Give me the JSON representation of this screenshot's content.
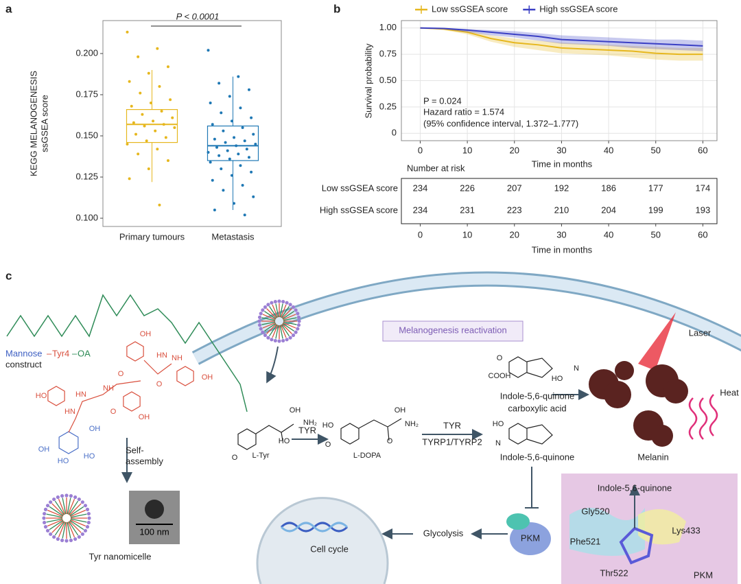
{
  "chart_data": [
    {
      "type": "box",
      "panel": "a",
      "y_label": [
        "KEGG MELANOGENESIS",
        "ssGSEA score"
      ],
      "annotation": "P < 0.0001",
      "categories": [
        "Primary tumours",
        "Metastasis"
      ],
      "colors": [
        "#e6b71e",
        "#1f78b4"
      ],
      "ylim": [
        0.095,
        0.22
      ],
      "yticks": [
        {
          "value": 0.1,
          "label": "0.100"
        },
        0.125,
        {
          "value": 0.15,
          "label": "0.150"
        },
        0.175,
        {
          "value": 0.2,
          "label": "0.200"
        }
      ],
      "boxes": [
        {
          "q1": 0.146,
          "median": 0.157,
          "q3": 0.166,
          "whisker_low": 0.122,
          "whisker_high": 0.19,
          "points": [
            0.213,
            0.203,
            0.198,
            0.192,
            0.188,
            0.183,
            0.18,
            0.176,
            0.172,
            0.17,
            0.168,
            0.165,
            0.163,
            0.161,
            0.159,
            0.158,
            0.157,
            0.156,
            0.155,
            0.153,
            0.151,
            0.149,
            0.147,
            0.145,
            0.142,
            0.139,
            0.135,
            0.13,
            0.124,
            0.108
          ]
        },
        {
          "q1": 0.135,
          "median": 0.144,
          "q3": 0.156,
          "whisker_low": 0.105,
          "whisker_high": 0.186,
          "points": [
            0.202,
            0.186,
            0.182,
            0.178,
            0.174,
            0.17,
            0.167,
            0.164,
            0.161,
            0.159,
            0.157,
            0.155,
            0.153,
            0.151,
            0.149,
            0.148,
            0.147,
            0.146,
            0.145,
            0.144,
            0.143,
            0.142,
            0.141,
            0.14,
            0.139,
            0.138,
            0.137,
            0.136,
            0.134,
            0.132,
            0.13,
            0.128,
            0.126,
            0.123,
            0.12,
            0.117,
            0.113,
            0.109,
            0.105,
            0.102
          ]
        }
      ]
    },
    {
      "type": "line",
      "panel": "b",
      "ylabel": "Survival probability",
      "xlabel": "Time in months",
      "annotations": [
        "P = 0.024",
        "Hazard ratio = 1.574",
        "(95% confidence interval, 1.372–1.777)"
      ],
      "grid": true,
      "legend": "top",
      "x": [
        0,
        5,
        10,
        15,
        20,
        25,
        30,
        35,
        40,
        45,
        50,
        55,
        60
      ],
      "xlim": [
        -4,
        63
      ],
      "xticks": [
        0,
        10,
        20,
        30,
        40,
        50,
        60
      ],
      "ylim": [
        -0.07,
        1.07
      ],
      "yticks": [
        0,
        0.25,
        {
          "value": 0.5,
          "label": "0.50"
        },
        0.75,
        {
          "value": 1,
          "label": "1.00"
        }
      ],
      "series": [
        {
          "name": "Low ssGSEA score",
          "color": "#e6b71e",
          "values": [
            1,
            0.99,
            0.96,
            0.9,
            0.86,
            0.84,
            0.81,
            0.8,
            0.79,
            0.78,
            0.76,
            0.75,
            0.75
          ],
          "lower": [
            1,
            0.98,
            0.94,
            0.87,
            0.82,
            0.79,
            0.76,
            0.75,
            0.74,
            0.72,
            0.7,
            0.69,
            0.69
          ],
          "upper": [
            1,
            1,
            0.98,
            0.93,
            0.9,
            0.88,
            0.86,
            0.85,
            0.84,
            0.83,
            0.82,
            0.81,
            0.81
          ]
        },
        {
          "name": "High ssGSEA score",
          "color": "#3a3fc4",
          "values": [
            1,
            0.995,
            0.98,
            0.96,
            0.94,
            0.92,
            0.89,
            0.88,
            0.87,
            0.86,
            0.85,
            0.84,
            0.83
          ],
          "lower": [
            1,
            0.99,
            0.96,
            0.93,
            0.91,
            0.88,
            0.85,
            0.84,
            0.83,
            0.81,
            0.8,
            0.79,
            0.78
          ],
          "upper": [
            1,
            1,
            0.99,
            0.98,
            0.97,
            0.95,
            0.93,
            0.92,
            0.91,
            0.9,
            0.89,
            0.89,
            0.88
          ]
        }
      ]
    }
  ],
  "risk_table": {
    "title": "Number at risk",
    "xlabel": "Time in months",
    "xticks": [
      0,
      10,
      20,
      30,
      40,
      50,
      60
    ],
    "rows": [
      {
        "name": "Low ssGSEA score",
        "values": [
          234,
          226,
          207,
          192,
          186,
          177,
          174
        ]
      },
      {
        "name": "High ssGSEA score",
        "values": [
          234,
          231,
          223,
          210,
          204,
          199,
          193
        ]
      }
    ]
  },
  "diagram": {
    "panel": "c",
    "construct": [
      "Mannose",
      "–",
      "Tyr4",
      "–",
      "OA"
    ],
    "construct_word": "construct",
    "self_assembly": [
      "Self-",
      "assembly"
    ],
    "scale_bar": "100 nm",
    "micelle": "Tyr nanomicelle",
    "box_label": "Melanogenesis reactivation",
    "tyr": "L-Tyr",
    "enzyme1": "TYR",
    "dopa": "L-DOPA",
    "enzyme2": [
      "TYR",
      "TYRP1/TYRP2"
    ],
    "quinone_acid": [
      "Indole-5,6-quinone",
      "carboxylic acid"
    ],
    "quinone": "Indole-5,6-quinone",
    "melanin": "Melanin",
    "laser": "Laser",
    "heat": "Heat",
    "cell_cycle": "Cell cycle",
    "glycolysis": "Glycolysis",
    "pkm": "PKM",
    "inset": {
      "title": "Indole-5,6-quinone",
      "residues": [
        "Gly520",
        "Lys433",
        "Phe521",
        "Thr522"
      ],
      "protein": "PKM"
    },
    "chem_labels": [
      "OH",
      "NH",
      "HN",
      "O",
      "O",
      "NH",
      "OH",
      "HN",
      "O",
      "HO",
      "HN",
      "OH",
      "OH",
      "HO",
      "OH",
      "HO",
      "O",
      "OH",
      "NH₂",
      "HO",
      "HO",
      "O",
      "OH",
      "NH₂",
      "O",
      "O",
      "COOH",
      "N",
      "HO",
      "HO",
      "N"
    ]
  }
}
